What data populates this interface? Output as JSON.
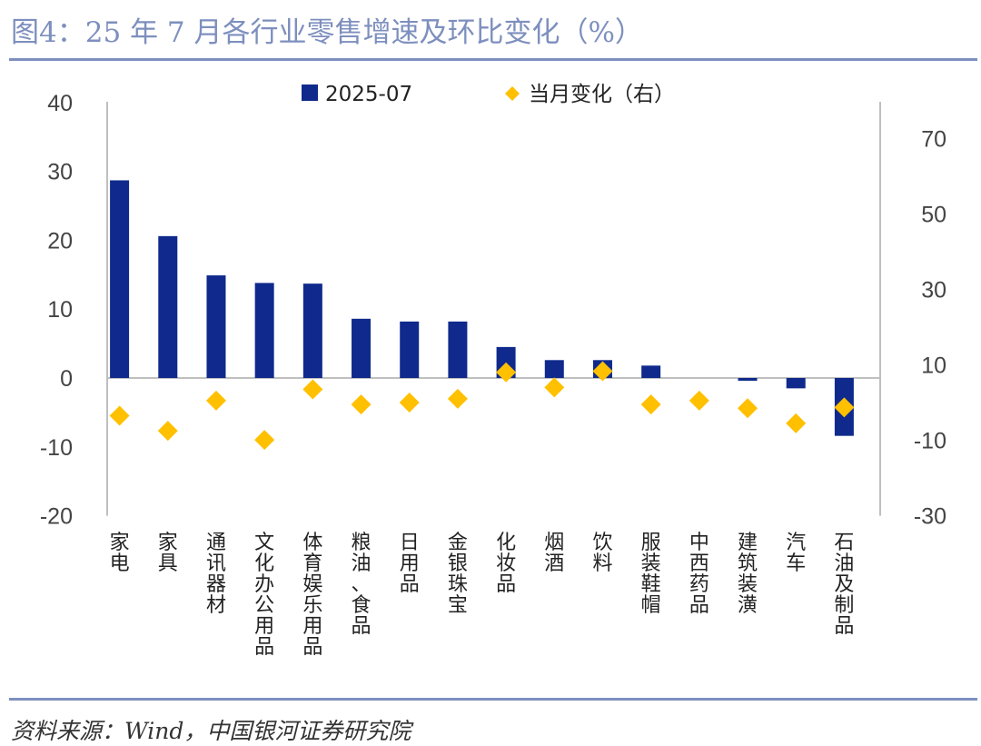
{
  "header": {
    "title": "图4：25 年 7 月各行业零售增速及环比变化（%）"
  },
  "footer": {
    "source": "资料来源：Wind，中国银河证券研究院"
  },
  "colors": {
    "bar": "#0f2a8c",
    "marker": "#ffc000",
    "axis": "#bfbfbf",
    "rule": "#7d8fbe"
  },
  "chart_data": {
    "type": "bar",
    "categories": [
      "家电",
      "家具",
      "通讯器材",
      "文化办公用品",
      "体育娱乐用品",
      "粮油、食品",
      "日用品",
      "金银珠宝",
      "化妆品",
      "烟酒",
      "饮料",
      "服装鞋帽",
      "中西药品",
      "建筑装潢",
      "汽车",
      "石油及制品"
    ],
    "series": [
      {
        "name": "2025-07",
        "type": "bar",
        "axis": "left",
        "values": [
          28.7,
          20.6,
          14.9,
          13.8,
          13.7,
          8.6,
          8.2,
          8.2,
          4.5,
          2.6,
          2.6,
          1.8,
          0,
          -0.4,
          -1.5,
          -8.4
        ]
      },
      {
        "name": "当月变化（右）",
        "type": "scatter",
        "marker": "diamond",
        "axis": "right",
        "values": [
          -3.5,
          -7.5,
          0.5,
          -9.9,
          3.5,
          -0.5,
          0,
          1,
          8,
          4,
          8.3,
          -0.5,
          0.5,
          -1.5,
          -5.5,
          -1.3
        ]
      }
    ],
    "y_left": {
      "ticks": [
        "40",
        "30",
        "20",
        "10",
        "0",
        "-10",
        "-20"
      ],
      "ylim": [
        -20,
        40
      ]
    },
    "y_right": {
      "ticks": [
        "70",
        "50",
        "30",
        "10",
        "-10",
        "-30"
      ],
      "ylim": [
        -30,
        80
      ]
    },
    "legend": {
      "position": "top-center"
    },
    "grid": false
  }
}
